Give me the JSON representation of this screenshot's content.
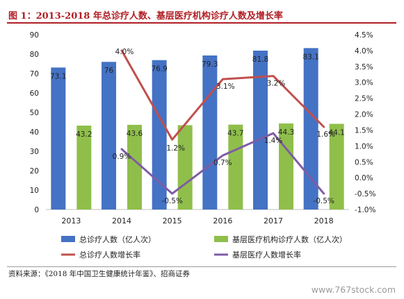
{
  "title": "图 1：2013-2018 年总诊疗人数、基层医疗机构诊疗人数及增长率",
  "source": "资料来源：《2018 年中国卫生健康统计年鉴》、招商证券",
  "watermark": "www.767stock.com",
  "colors": {
    "total_bar": "#4472c4",
    "grass_bar": "#8fbf4a",
    "total_line": "#c0504d",
    "grass_line": "#7f5ca6",
    "title": "#b01e24"
  },
  "chart_data": {
    "type": "bar+line",
    "categories": [
      "2013",
      "2014",
      "2015",
      "2016",
      "2017",
      "2018"
    ],
    "y_left": {
      "min": 0,
      "max": 90,
      "ticks": [
        "0",
        "10",
        "20",
        "30",
        "40",
        "50",
        "60",
        "70",
        "80",
        "90"
      ]
    },
    "y_right": {
      "min": -1.0,
      "max": 4.5,
      "ticks": [
        "-1.0%",
        "-0.5%",
        "0.0%",
        "0.5%",
        "1.0%",
        "1.5%",
        "2.0%",
        "2.5%",
        "3.0%",
        "3.5%",
        "4.0%",
        "4.5%"
      ]
    },
    "bars": [
      {
        "name": "总诊疗人数（亿人次）",
        "values": [
          73.1,
          76,
          76.9,
          79.3,
          81.8,
          83.1
        ],
        "labels": [
          "73.1",
          "76",
          "76.9",
          "79.3",
          "81.8",
          "83.1"
        ]
      },
      {
        "name": "基层医疗机构诊疗人数（亿人次）",
        "values": [
          43.2,
          43.6,
          43.4,
          43.7,
          44.3,
          44.1
        ],
        "labels": [
          "43.2",
          "43.6",
          "",
          "43.7",
          "44.3",
          "44.1"
        ]
      }
    ],
    "lines": [
      {
        "name": "总诊疗人数增长率",
        "x": [
          "2014",
          "2015",
          "2016",
          "2017",
          "2018"
        ],
        "values": [
          4.0,
          1.2,
          3.1,
          3.2,
          1.6
        ],
        "labels": [
          "4.0%",
          "1.2%",
          "3.1%",
          "3.2%",
          "1.6%"
        ]
      },
      {
        "name": "基层医疗人数增长率",
        "x": [
          "2014",
          "2015",
          "2016",
          "2017",
          "2018"
        ],
        "values": [
          0.9,
          -0.5,
          0.7,
          1.4,
          -0.5
        ],
        "labels": [
          "0.9%",
          "-0.5%",
          "0.7%",
          "1.4%",
          "-0.5%"
        ]
      }
    ],
    "grid": false,
    "legend_position": "bottom"
  }
}
